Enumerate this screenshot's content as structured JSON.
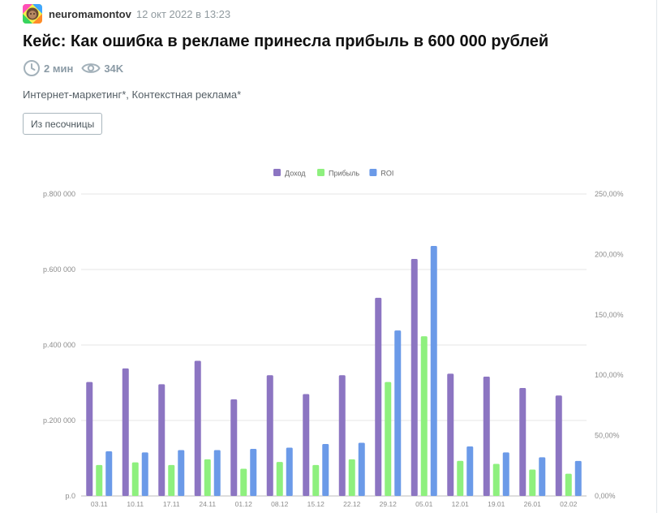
{
  "post": {
    "author": "neuromamontov",
    "date": "12 окт 2022 в 13:23",
    "title": "Кейс: Как ошибка в рекламе принесла прибыль в 600 000 рублей",
    "reading_time": "2 мин",
    "views": "34K",
    "hubs": [
      "Интернет-маркетинг*",
      "Контекстная реклама*"
    ],
    "hub_separator": ", ",
    "sandbox_label": "Из песочницы"
  },
  "icons": {
    "reading_time": "clock-icon",
    "views": "eye-icon"
  },
  "colors": {
    "revenue": "#8c75c2",
    "profit": "#8ef07e",
    "roi": "#6b9ae8",
    "meta": "#8a9aa5"
  },
  "chart_data": {
    "type": "bar",
    "categories": [
      "03.11",
      "10.11",
      "17.11",
      "24.11",
      "01.12",
      "08.12",
      "15.12",
      "22.12",
      "29.12",
      "05.01",
      "12.01",
      "19.01",
      "26.01",
      "02.02"
    ],
    "series": [
      {
        "name": "Доход",
        "axis": "left",
        "values": [
          302000,
          338000,
          296000,
          358000,
          256000,
          320000,
          270000,
          320000,
          525000,
          628000,
          324000,
          316000,
          286000,
          266000
        ]
      },
      {
        "name": "Прибыль",
        "axis": "left",
        "values": [
          82000,
          89000,
          82000,
          97000,
          72000,
          90000,
          82000,
          97000,
          302000,
          423000,
          93000,
          85000,
          70000,
          59000
        ]
      },
      {
        "name": "ROI",
        "axis": "right",
        "values": [
          37,
          36,
          38,
          38,
          39,
          40,
          43,
          44,
          137,
          207,
          41,
          36,
          32,
          29
        ]
      }
    ],
    "left_axis": {
      "ylim": [
        0,
        800000
      ],
      "ticks": [
        "р.0",
        "р.200 000",
        "р.400 000",
        "р.600 000",
        "р.800 000"
      ]
    },
    "right_axis": {
      "ylim": [
        0,
        250
      ],
      "ticks": [
        "0,00%",
        "50,00%",
        "100,00%",
        "150,00%",
        "200,00%",
        "250,00%"
      ]
    },
    "legend_position": "top-center",
    "grid": true
  }
}
